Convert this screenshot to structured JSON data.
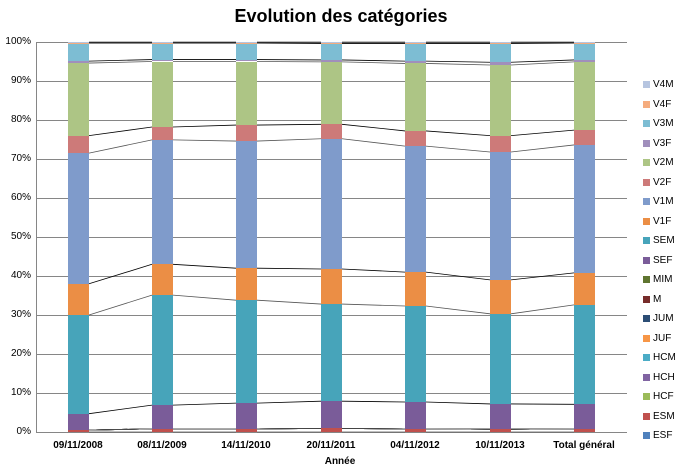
{
  "chart_data": {
    "type": "bar",
    "stacked": "percent",
    "title": "Evolution des catégories",
    "xlabel": "Année",
    "ylabel": "",
    "ylim": [
      0,
      100
    ],
    "yticks": [
      "0%",
      "10%",
      "20%",
      "30%",
      "40%",
      "50%",
      "60%",
      "70%",
      "80%",
      "90%",
      "100%"
    ],
    "categories": [
      "09/11/2008",
      "08/11/2009",
      "14/11/2010",
      "20/11/2011",
      "04/11/2012",
      "10/11/2013",
      "Total général"
    ],
    "legend_position": "right",
    "grid": true,
    "series": [
      {
        "name": "ESF",
        "color": "#4F81BD",
        "values": [
          0,
          0,
          0,
          0,
          0,
          0,
          0
        ]
      },
      {
        "name": "ESM",
        "color": "#C0504D",
        "values": [
          0.5,
          0.8,
          0.8,
          0.9,
          0.8,
          0.7,
          0.8
        ]
      },
      {
        "name": "HCF",
        "color": "#9BBB59",
        "values": [
          0,
          0,
          0,
          0,
          0,
          0,
          0
        ]
      },
      {
        "name": "HCH",
        "color": "#8064A2",
        "values": [
          0,
          0,
          0,
          0,
          0,
          0,
          0
        ]
      },
      {
        "name": "HCM",
        "color": "#4BACC6",
        "values": [
          0,
          0,
          0,
          0,
          0,
          0,
          0
        ]
      },
      {
        "name": "JUF",
        "color": "#F79646",
        "values": [
          0,
          0,
          0,
          0,
          0,
          0,
          0
        ]
      },
      {
        "name": "JUM",
        "color": "#2C4D75",
        "values": [
          0,
          0,
          0,
          0,
          0,
          0,
          0
        ]
      },
      {
        "name": "M",
        "color": "#772C2A",
        "values": [
          0,
          0,
          0,
          0,
          0,
          0,
          0
        ]
      },
      {
        "name": "MIM",
        "color": "#5F7530",
        "values": [
          0,
          0,
          0,
          0,
          0,
          0,
          0
        ]
      },
      {
        "name": "SEF",
        "color": "#7A5C99",
        "values": [
          4.2,
          6.1,
          6.6,
          7.0,
          6.9,
          6.5,
          6.3
        ]
      },
      {
        "name": "SEM",
        "color": "#47A4BA",
        "values": [
          25.3,
          28.2,
          26.4,
          24.9,
          24.6,
          23.1,
          25.5
        ]
      },
      {
        "name": "V1F",
        "color": "#EB8E45",
        "values": [
          8.0,
          7.9,
          8.2,
          9.0,
          8.7,
          8.7,
          8.2
        ]
      },
      {
        "name": "V1M",
        "color": "#7F9BCB",
        "values": [
          33.5,
          31.9,
          32.6,
          33.4,
          32.3,
          32.8,
          32.8
        ]
      },
      {
        "name": "V2F",
        "color": "#CD7A79",
        "values": [
          4.5,
          3.3,
          4.1,
          3.7,
          3.9,
          4.2,
          3.8
        ]
      },
      {
        "name": "V2M",
        "color": "#ADC585",
        "values": [
          18.6,
          16.8,
          16.3,
          16.0,
          17.3,
          18.1,
          17.5
        ]
      },
      {
        "name": "V3F",
        "color": "#A08FBC",
        "values": [
          0.5,
          0.5,
          0.5,
          0.5,
          0.6,
          0.7,
          0.5
        ]
      },
      {
        "name": "V3M",
        "color": "#7DBDD3",
        "values": [
          4.6,
          4.2,
          4.2,
          4.2,
          4.5,
          4.8,
          4.3
        ]
      },
      {
        "name": "V4F",
        "color": "#F5AC7E",
        "values": [
          0.1,
          0.1,
          0.1,
          0.1,
          0.1,
          0.1,
          0.1
        ]
      },
      {
        "name": "V4M",
        "color": "#B6C5E0",
        "values": [
          0.2,
          0.2,
          0.2,
          0.3,
          0.3,
          0.3,
          0.2
        ]
      }
    ]
  }
}
